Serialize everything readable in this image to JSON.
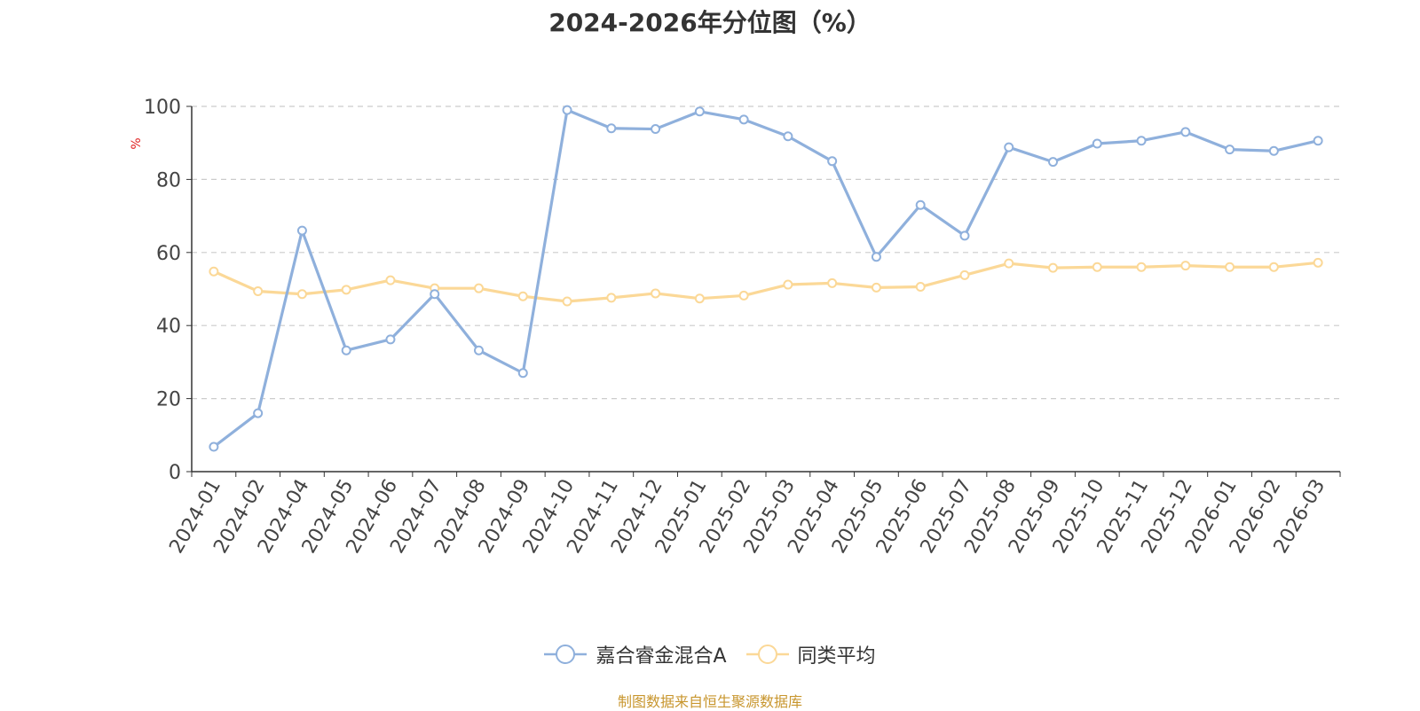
{
  "chart_data": {
    "type": "line",
    "title": "2024-2026年分位图（%）",
    "ylabel": "%",
    "xlabel": "",
    "ylim": [
      0,
      100
    ],
    "yticks": [
      0,
      20,
      40,
      60,
      80,
      100
    ],
    "grid": true,
    "legend_position": "bottom",
    "categories": [
      "2024-01",
      "2024-02",
      "2024-04",
      "2024-05",
      "2024-06",
      "2024-07",
      "2024-08",
      "2024-09",
      "2024-10",
      "2024-11",
      "2024-12",
      "2025-01",
      "2025-02",
      "2025-03",
      "2025-04",
      "2025-05",
      "2025-06",
      "2025-07",
      "2025-08",
      "2025-09",
      "2025-10",
      "2025-11",
      "2025-12",
      "2026-01",
      "2026-02",
      "2026-03"
    ],
    "series": [
      {
        "name": "嘉合睿金混合A",
        "color": "#8fb0dc",
        "values": [
          6.8,
          16.0,
          66.0,
          33.2,
          36.2,
          48.6,
          33.2,
          27.0,
          99.0,
          94.0,
          93.8,
          98.6,
          96.4,
          91.8,
          85.0,
          58.8,
          73.0,
          64.6,
          88.8,
          84.8,
          89.8,
          90.6,
          93.0,
          88.2,
          87.8,
          90.6
        ]
      },
      {
        "name": "同类平均",
        "color": "#fbd897",
        "values": [
          54.8,
          49.4,
          48.6,
          49.8,
          52.4,
          50.2,
          50.2,
          48.0,
          46.6,
          47.6,
          48.8,
          47.4,
          48.2,
          51.2,
          51.6,
          50.4,
          50.6,
          53.8,
          57.0,
          55.8,
          56.0,
          56.0,
          56.4,
          56.0,
          56.0,
          57.2
        ]
      }
    ]
  },
  "source_note": "制图数据来自恒生聚源数据库"
}
